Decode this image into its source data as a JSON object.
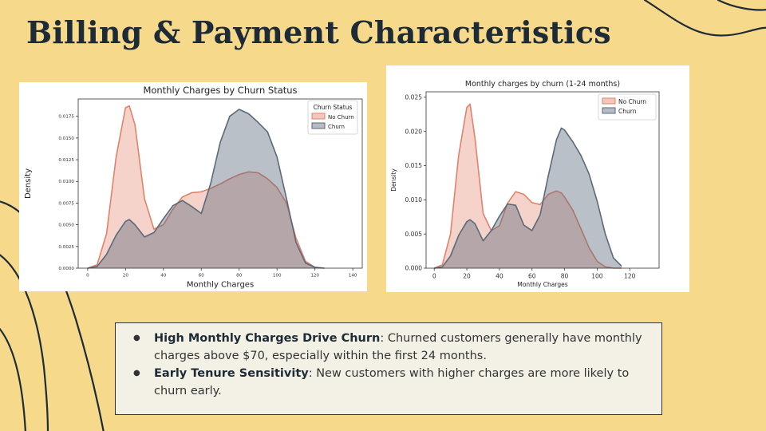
{
  "slide": {
    "title": "Billing & Payment Characteristics",
    "colors": {
      "background": "#f7d98c",
      "dark": "#1c2b36",
      "no_churn": "#e2826a",
      "churn": "#5b6a79"
    }
  },
  "chart_data": [
    {
      "type": "area",
      "title": "Monthly Charges by Churn Status",
      "xlabel": "Monthly Charges",
      "ylabel": "Density",
      "xlim": [
        -5,
        145
      ],
      "ylim": [
        0,
        0.0195
      ],
      "xticks": [
        "0",
        "20",
        "40",
        "60",
        "80",
        "100",
        "120",
        "140"
      ],
      "yticks": [
        "0.0000",
        "0.0025",
        "0.0050",
        "0.0075",
        "0.0100",
        "0.0125",
        "0.0150",
        "0.0175"
      ],
      "legend": {
        "title": "Churn Status",
        "placement": "top-right",
        "entries": [
          "No Churn",
          "Churn"
        ]
      },
      "x": [
        0,
        5,
        10,
        15,
        20,
        22,
        25,
        30,
        35,
        40,
        45,
        50,
        55,
        60,
        65,
        70,
        75,
        80,
        85,
        90,
        95,
        100,
        105,
        110,
        115,
        120,
        125
      ],
      "series": [
        {
          "name": "No Churn",
          "color": "#e2826a",
          "values": [
            0,
            0.0004,
            0.004,
            0.0128,
            0.0185,
            0.0187,
            0.0165,
            0.008,
            0.0045,
            0.005,
            0.0068,
            0.0082,
            0.0087,
            0.0088,
            0.0092,
            0.0097,
            0.0103,
            0.0108,
            0.0111,
            0.011,
            0.0103,
            0.0093,
            0.0075,
            0.0035,
            0.0008,
            0.0001,
            0
          ]
        },
        {
          "name": "Churn",
          "color": "#5b6a79",
          "values": [
            0,
            0.0002,
            0.0016,
            0.0038,
            0.0054,
            0.0056,
            0.005,
            0.0036,
            0.0041,
            0.0057,
            0.0072,
            0.0078,
            0.0071,
            0.0063,
            0.0098,
            0.0145,
            0.0175,
            0.0183,
            0.0178,
            0.0168,
            0.0157,
            0.0128,
            0.008,
            0.003,
            0.0006,
            0.0001,
            0
          ]
        }
      ]
    },
    {
      "type": "area",
      "title": "Monthly charges by churn (1-24 months)",
      "xlabel": "Monthly Charges",
      "ylabel": "Density",
      "xlim": [
        -5,
        138
      ],
      "ylim": [
        0,
        0.0258
      ],
      "xticks": [
        "0",
        "20",
        "40",
        "60",
        "80",
        "100",
        "120"
      ],
      "yticks": [
        "0.000",
        "0.005",
        "0.010",
        "0.015",
        "0.020",
        "0.025"
      ],
      "legend": {
        "placement": "top-right",
        "entries": [
          "No Churn",
          "Churn"
        ]
      },
      "x": [
        0,
        5,
        10,
        15,
        20,
        22,
        25,
        30,
        35,
        40,
        45,
        50,
        55,
        60,
        65,
        70,
        75,
        78,
        80,
        85,
        90,
        95,
        100,
        105,
        110,
        115
      ],
      "series": [
        {
          "name": "No Churn",
          "color": "#e2826a",
          "values": [
            0,
            0.0005,
            0.005,
            0.0165,
            0.0235,
            0.024,
            0.019,
            0.008,
            0.0055,
            0.0062,
            0.0095,
            0.0112,
            0.0108,
            0.0096,
            0.0093,
            0.0108,
            0.0113,
            0.011,
            0.0104,
            0.0085,
            0.0058,
            0.003,
            0.001,
            0.0002,
            0,
            0
          ]
        },
        {
          "name": "Churn",
          "color": "#5b6a79",
          "values": [
            0,
            0.0002,
            0.0018,
            0.0048,
            0.0068,
            0.0071,
            0.0065,
            0.004,
            0.0055,
            0.0076,
            0.0094,
            0.0092,
            0.0063,
            0.0055,
            0.0078,
            0.0135,
            0.0188,
            0.0205,
            0.0202,
            0.0185,
            0.0165,
            0.0138,
            0.0098,
            0.005,
            0.0015,
            0.0003
          ]
        }
      ]
    }
  ],
  "bullets": [
    {
      "bold": "High Monthly Charges Drive Churn",
      "text": ": Churned customers generally have monthly charges above $70, especially within the first 24 months."
    },
    {
      "bold": "Early Tenure Sensitivity",
      "text": ": New customers with higher charges are more likely to churn early."
    }
  ]
}
